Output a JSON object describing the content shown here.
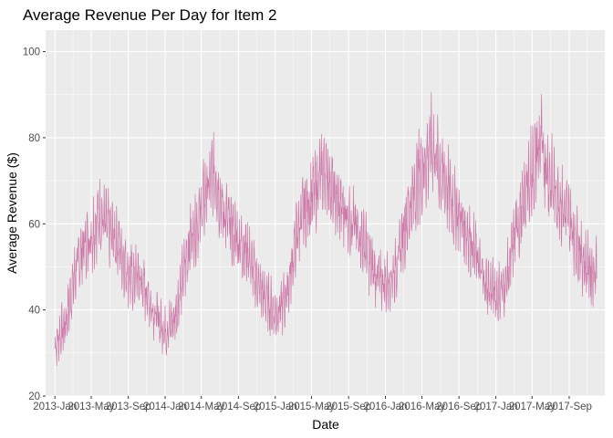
{
  "chart_data": {
    "type": "line",
    "title": "Average Revenue Per Day for Item 2",
    "xlabel": "Date",
    "ylabel": "Average Revenue ($)",
    "xlim": [
      "2012-12-01",
      "2017-12-31"
    ],
    "ylim": [
      20,
      105
    ],
    "y_ticks": [
      20,
      40,
      60,
      80,
      100
    ],
    "x_ticks": [
      {
        "date": "2013-01-01",
        "label": "2013-Jan"
      },
      {
        "date": "2013-05-01",
        "label": "2013-May"
      },
      {
        "date": "2013-09-01",
        "label": "2013-Sep"
      },
      {
        "date": "2014-01-01",
        "label": "2014-Jan"
      },
      {
        "date": "2014-05-01",
        "label": "2014-May"
      },
      {
        "date": "2014-09-01",
        "label": "2014-Sep"
      },
      {
        "date": "2015-01-01",
        "label": "2015-Jan"
      },
      {
        "date": "2015-05-01",
        "label": "2015-May"
      },
      {
        "date": "2015-09-01",
        "label": "2015-Sep"
      },
      {
        "date": "2016-01-01",
        "label": "2016-Jan"
      },
      {
        "date": "2016-05-01",
        "label": "2016-May"
      },
      {
        "date": "2016-09-01",
        "label": "2016-Sep"
      },
      {
        "date": "2017-01-01",
        "label": "2017-Jan"
      },
      {
        "date": "2017-05-01",
        "label": "2017-May"
      },
      {
        "date": "2017-09-01",
        "label": "2017-Sep"
      }
    ],
    "grid": true,
    "background": "#ebebeb",
    "line_color": "#cc79a7",
    "series": [
      {
        "x": [
          "2013-01-01",
          "2013-01-15",
          "2013-02-01",
          "2013-02-15",
          "2013-03-01",
          "2013-03-15",
          "2013-04-01",
          "2013-04-15",
          "2013-05-01",
          "2013-05-15",
          "2013-06-01",
          "2013-06-15",
          "2013-07-01",
          "2013-07-15",
          "2013-08-01",
          "2013-08-15",
          "2013-09-01",
          "2013-09-15",
          "2013-10-01",
          "2013-10-15",
          "2013-11-01",
          "2013-11-15",
          "2013-12-01",
          "2013-12-15",
          "2014-01-01",
          "2014-01-15",
          "2014-02-01",
          "2014-02-15",
          "2014-03-01",
          "2014-03-15",
          "2014-04-01",
          "2014-04-15",
          "2014-05-01",
          "2014-05-15",
          "2014-06-01",
          "2014-06-15",
          "2014-07-01",
          "2014-07-15",
          "2014-08-01",
          "2014-08-15",
          "2014-09-01",
          "2014-09-15",
          "2014-10-01",
          "2014-10-15",
          "2014-11-01",
          "2014-11-15",
          "2014-12-01",
          "2014-12-15",
          "2015-01-01",
          "2015-01-15",
          "2015-02-01",
          "2015-02-15",
          "2015-03-01",
          "2015-03-15",
          "2015-04-01",
          "2015-04-15",
          "2015-05-01",
          "2015-05-15",
          "2015-06-01",
          "2015-06-15",
          "2015-07-01",
          "2015-07-15",
          "2015-08-01",
          "2015-08-15",
          "2015-09-01",
          "2015-09-15",
          "2015-10-01",
          "2015-10-15",
          "2015-11-01",
          "2015-11-15",
          "2015-12-01",
          "2015-12-15",
          "2016-01-01",
          "2016-01-15",
          "2016-02-01",
          "2016-02-15",
          "2016-03-01",
          "2016-03-15",
          "2016-04-01",
          "2016-04-15",
          "2016-05-01",
          "2016-05-15",
          "2016-06-01",
          "2016-06-15",
          "2016-07-01",
          "2016-07-15",
          "2016-08-01",
          "2016-08-15",
          "2016-09-01",
          "2016-09-15",
          "2016-10-01",
          "2016-10-15",
          "2016-11-01",
          "2016-11-15",
          "2016-12-01",
          "2016-12-15",
          "2017-01-01",
          "2017-01-15",
          "2017-02-01",
          "2017-02-15",
          "2017-03-01",
          "2017-03-15",
          "2017-04-01",
          "2017-04-15",
          "2017-05-01",
          "2017-05-15",
          "2017-06-01",
          "2017-06-15",
          "2017-07-01",
          "2017-07-15",
          "2017-08-01",
          "2017-08-15",
          "2017-09-01",
          "2017-09-15",
          "2017-10-01",
          "2017-10-15",
          "2017-11-01",
          "2017-11-15",
          "2017-12-01"
        ],
        "values": [
          31,
          34,
          36,
          40,
          46,
          50,
          54,
          56,
          57,
          60,
          62,
          60,
          58,
          57,
          55,
          52,
          49,
          47,
          48,
          46,
          44,
          41,
          39,
          37,
          35,
          36,
          38,
          42,
          48,
          53,
          58,
          60,
          63,
          67,
          70,
          72,
          66,
          62,
          60,
          58,
          56,
          55,
          54,
          50,
          47,
          44,
          43,
          41,
          39,
          40,
          42,
          46,
          52,
          58,
          62,
          64,
          66,
          68,
          71,
          73,
          70,
          66,
          64,
          63,
          62,
          60,
          58,
          57,
          54,
          50,
          48,
          47,
          46,
          47,
          49,
          53,
          58,
          62,
          66,
          70,
          73,
          75,
          79,
          76,
          72,
          70,
          67,
          64,
          62,
          60,
          58,
          55,
          52,
          48,
          46,
          45,
          44,
          44,
          46,
          50,
          56,
          60,
          64,
          68,
          72,
          76,
          78,
          74,
          70,
          68,
          66,
          63,
          61,
          58,
          55,
          52,
          50,
          49,
          50
        ],
        "spread": [
          6,
          7,
          7,
          8,
          8,
          9,
          9,
          10,
          10,
          10,
          10,
          10,
          10,
          10,
          9,
          9,
          9,
          9,
          8,
          8,
          8,
          7,
          7,
          7,
          7,
          7,
          8,
          8,
          9,
          10,
          10,
          10,
          10,
          11,
          11,
          11,
          11,
          10,
          10,
          10,
          9,
          9,
          9,
          9,
          8,
          8,
          8,
          8,
          7,
          7,
          8,
          8,
          9,
          10,
          10,
          10,
          11,
          11,
          11,
          12,
          11,
          11,
          10,
          10,
          10,
          10,
          9,
          9,
          9,
          9,
          8,
          8,
          8,
          8,
          8,
          9,
          10,
          11,
          11,
          12,
          12,
          13,
          13,
          13,
          12,
          12,
          11,
          11,
          10,
          10,
          10,
          9,
          9,
          9,
          8,
          8,
          8,
          8,
          8,
          9,
          10,
          11,
          11,
          12,
          13,
          13,
          13,
          13,
          12,
          12,
          11,
          11,
          10,
          10,
          10,
          9,
          9,
          9,
          9
        ]
      }
    ]
  }
}
